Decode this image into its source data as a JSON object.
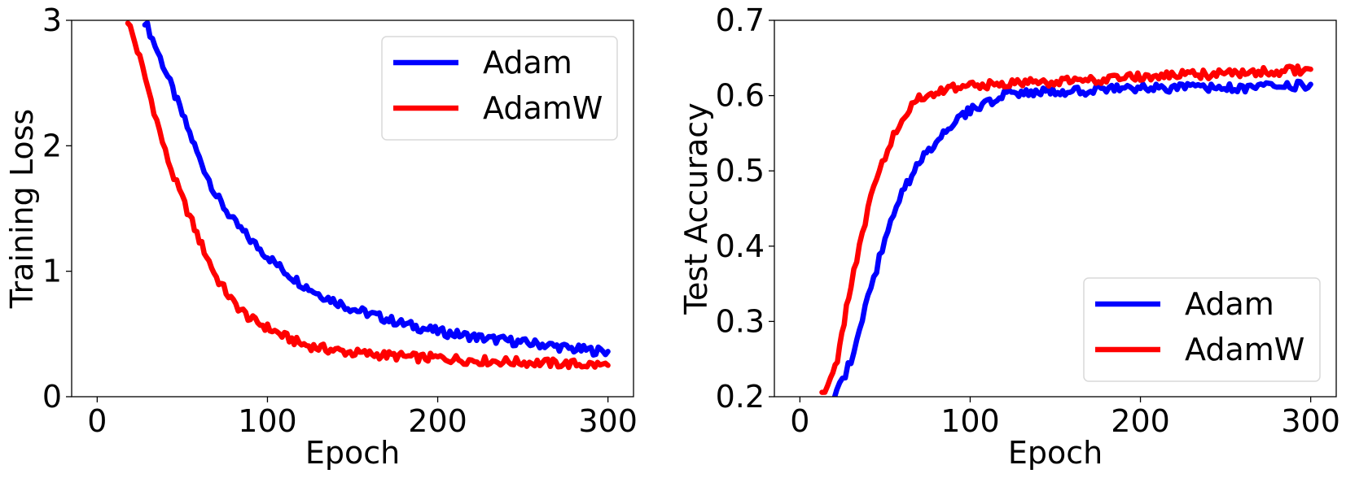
{
  "chart_data": [
    {
      "type": "line",
      "title": "",
      "xlabel": "Epoch",
      "ylabel": "Training Loss",
      "xlim": [
        -15,
        315
      ],
      "ylim": [
        0,
        3
      ],
      "xticks": [
        "0",
        "100",
        "200",
        "300"
      ],
      "yticks": [
        "0",
        "1",
        "2",
        "3"
      ],
      "legend_position": "top-right",
      "series": [
        {
          "name": "Adam",
          "color": "#0000ff",
          "x": [
            28,
            40,
            50,
            60,
            70,
            80,
            90,
            100,
            110,
            120,
            130,
            140,
            150,
            160,
            170,
            180,
            190,
            200,
            210,
            220,
            230,
            240,
            250,
            260,
            270,
            280,
            290,
            300
          ],
          "values": [
            3.0,
            2.6,
            2.25,
            1.9,
            1.6,
            1.4,
            1.25,
            1.12,
            1.0,
            0.9,
            0.82,
            0.76,
            0.7,
            0.66,
            0.62,
            0.58,
            0.55,
            0.52,
            0.5,
            0.48,
            0.46,
            0.45,
            0.43,
            0.42,
            0.4,
            0.38,
            0.37,
            0.36
          ]
        },
        {
          "name": "AdamW",
          "color": "#ff0000",
          "x": [
            18,
            25,
            30,
            35,
            40,
            45,
            50,
            60,
            70,
            80,
            90,
            100,
            110,
            120,
            130,
            140,
            150,
            160,
            170,
            180,
            190,
            200,
            220,
            240,
            260,
            280,
            300
          ],
          "values": [
            3.0,
            2.7,
            2.45,
            2.2,
            1.95,
            1.75,
            1.58,
            1.25,
            0.95,
            0.75,
            0.62,
            0.55,
            0.48,
            0.42,
            0.39,
            0.37,
            0.35,
            0.34,
            0.33,
            0.32,
            0.31,
            0.31,
            0.29,
            0.28,
            0.27,
            0.26,
            0.25
          ]
        }
      ]
    },
    {
      "type": "line",
      "title": "",
      "xlabel": "Epoch",
      "ylabel": "Test Accuracy",
      "xlim": [
        -15,
        315
      ],
      "ylim": [
        0.2,
        0.7
      ],
      "xticks": [
        "0",
        "100",
        "200",
        "300"
      ],
      "yticks": [
        "0.2",
        "0.3",
        "0.4",
        "0.5",
        "0.6",
        "0.7"
      ],
      "legend_position": "bottom-right",
      "series": [
        {
          "name": "Adam",
          "color": "#0000ff",
          "x": [
            20,
            25,
            30,
            35,
            40,
            45,
            50,
            55,
            60,
            70,
            80,
            90,
            100,
            110,
            120,
            130,
            140,
            150,
            160,
            180,
            200,
            220,
            240,
            260,
            280,
            300
          ],
          "values": [
            0.2,
            0.22,
            0.25,
            0.29,
            0.33,
            0.37,
            0.41,
            0.44,
            0.47,
            0.51,
            0.54,
            0.565,
            0.58,
            0.59,
            0.6,
            0.605,
            0.605,
            0.605,
            0.605,
            0.608,
            0.61,
            0.61,
            0.61,
            0.61,
            0.612,
            0.615
          ]
        },
        {
          "name": "AdamW",
          "color": "#ff0000",
          "x": [
            13,
            18,
            22,
            26,
            30,
            35,
            40,
            45,
            50,
            55,
            60,
            70,
            80,
            90,
            100,
            110,
            120,
            140,
            160,
            180,
            200,
            220,
            240,
            260,
            280,
            300
          ],
          "values": [
            0.2,
            0.22,
            0.25,
            0.3,
            0.35,
            0.4,
            0.45,
            0.49,
            0.52,
            0.55,
            0.57,
            0.595,
            0.605,
            0.61,
            0.612,
            0.615,
            0.615,
            0.618,
            0.62,
            0.622,
            0.625,
            0.627,
            0.628,
            0.63,
            0.632,
            0.635
          ]
        }
      ]
    }
  ]
}
